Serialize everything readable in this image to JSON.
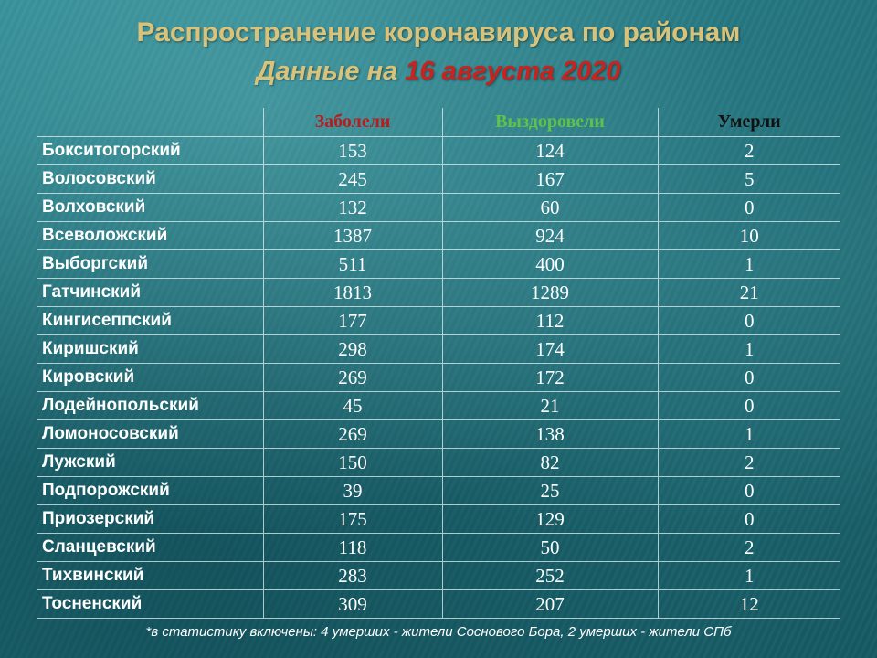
{
  "header": {
    "title": "Распространение коронавируса по районам",
    "subtitle_lead": "Данные на ",
    "subtitle_date": "16 августа 2020"
  },
  "table": {
    "columns": [
      "",
      "Заболели",
      "Выздоровели",
      "Умерли"
    ],
    "rows": [
      {
        "district": "Бокситогорский",
        "sick": "153",
        "recovered": "124",
        "died": "2"
      },
      {
        "district": "Волосовский",
        "sick": "245",
        "recovered": "167",
        "died": "5"
      },
      {
        "district": "Волховский",
        "sick": "132",
        "recovered": "60",
        "died": "0"
      },
      {
        "district": "Всеволожский",
        "sick": "1387",
        "recovered": "924",
        "died": "10"
      },
      {
        "district": "Выборгский",
        "sick": "511",
        "recovered": "400",
        "died": "1"
      },
      {
        "district": "Гатчинский",
        "sick": "1813",
        "recovered": "1289",
        "died": "21"
      },
      {
        "district": "Кингисеппский",
        "sick": "177",
        "recovered": "112",
        "died": "0"
      },
      {
        "district": "Киришский",
        "sick": "298",
        "recovered": "174",
        "died": "1"
      },
      {
        "district": "Кировский",
        "sick": "269",
        "recovered": "172",
        "died": "0"
      },
      {
        "district": "Лодейнопольский",
        "sick": "45",
        "recovered": "21",
        "died": "0"
      },
      {
        "district": "Ломоносовский",
        "sick": "269",
        "recovered": "138",
        "died": "1"
      },
      {
        "district": "Лужский",
        "sick": "150",
        "recovered": "82",
        "died": "2"
      },
      {
        "district": "Подпорожский",
        "sick": "39",
        "recovered": "25",
        "died": "0"
      },
      {
        "district": "Приозерский",
        "sick": "175",
        "recovered": "129",
        "died": "0"
      },
      {
        "district": "Сланцевский",
        "sick": "118",
        "recovered": "50",
        "died": "2"
      },
      {
        "district": "Тихвинский",
        "sick": "283",
        "recovered": "252",
        "died": "1"
      },
      {
        "district": "Тосненский",
        "sick": "309",
        "recovered": "207",
        "died": "12"
      }
    ]
  },
  "footnote": "*в статистику включены: 4 умерших - жители Соснового Бора, 2 умерших - жители СПб",
  "colors": {
    "title": "#d9c27a",
    "date": "#c8231f",
    "sick_header": "#b81c1c",
    "recovered_header": "#5fc24a",
    "died_header": "#111111"
  }
}
